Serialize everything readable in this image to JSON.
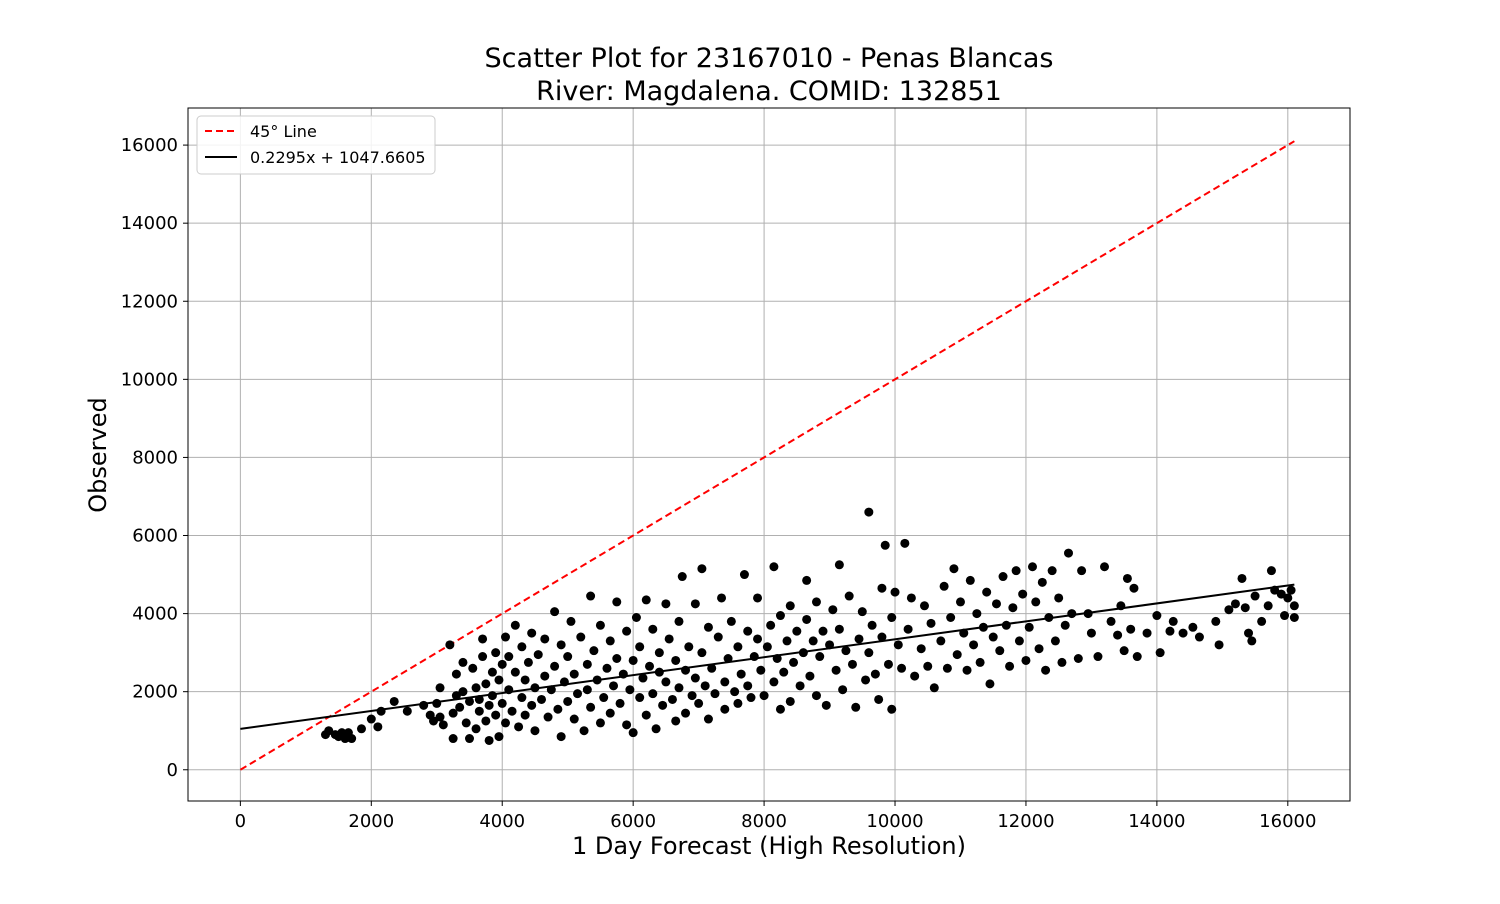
{
  "chart_data": {
    "type": "scatter",
    "title_lines": [
      "Scatter Plot for 23167010 - Penas Blancas",
      "River: Magdalena. COMID: 132851"
    ],
    "xlabel": "1 Day Forecast (High Resolution)",
    "ylabel": "Observed",
    "xlim": [
      -800,
      16950
    ],
    "ylim": [
      -800,
      16950
    ],
    "x_ticks": [
      0,
      2000,
      4000,
      6000,
      8000,
      10000,
      12000,
      14000,
      16000
    ],
    "y_ticks": [
      0,
      2000,
      4000,
      6000,
      8000,
      10000,
      12000,
      14000,
      16000
    ],
    "grid": true,
    "legend_position": "upper-left",
    "legend": [
      {
        "label": "45° Line",
        "style": "dashed",
        "color": "#ff0000"
      },
      {
        "label": "0.2295x + 1047.6605",
        "style": "solid",
        "color": "#000000"
      }
    ],
    "reference_line": {
      "name": "45° Line",
      "x": [
        0,
        16100
      ],
      "y": [
        0,
        16100
      ],
      "color": "#ff0000",
      "dash": true
    },
    "fit_line": {
      "name": "0.2295x + 1047.6605",
      "slope": 0.2295,
      "intercept": 1047.6605,
      "x_range": [
        0,
        16100
      ],
      "color": "#000000"
    },
    "marker_color": "#000000",
    "points": [
      [
        1300,
        900
      ],
      [
        1350,
        1000
      ],
      [
        1450,
        900
      ],
      [
        1500,
        850
      ],
      [
        1550,
        950
      ],
      [
        1600,
        800
      ],
      [
        1650,
        950
      ],
      [
        1700,
        800
      ],
      [
        1850,
        1050
      ],
      [
        2000,
        1300
      ],
      [
        2100,
        1100
      ],
      [
        2150,
        1500
      ],
      [
        2350,
        1750
      ],
      [
        2550,
        1500
      ],
      [
        2800,
        1650
      ],
      [
        2900,
        1400
      ],
      [
        2950,
        1250
      ],
      [
        3000,
        1700
      ],
      [
        3050,
        1350
      ],
      [
        3050,
        2100
      ],
      [
        3100,
        1150
      ],
      [
        3200,
        3200
      ],
      [
        3250,
        800
      ],
      [
        3250,
        1450
      ],
      [
        3300,
        1900
      ],
      [
        3300,
        2450
      ],
      [
        3350,
        1600
      ],
      [
        3400,
        2000
      ],
      [
        3400,
        2750
      ],
      [
        3450,
        1200
      ],
      [
        3500,
        1750
      ],
      [
        3500,
        800
      ],
      [
        3550,
        2600
      ],
      [
        3600,
        1050
      ],
      [
        3600,
        2100
      ],
      [
        3650,
        1500
      ],
      [
        3650,
        1800
      ],
      [
        3700,
        2900
      ],
      [
        3700,
        3350
      ],
      [
        3750,
        1250
      ],
      [
        3750,
        2200
      ],
      [
        3800,
        1650
      ],
      [
        3800,
        750
      ],
      [
        3850,
        2500
      ],
      [
        3850,
        1900
      ],
      [
        3900,
        1400
      ],
      [
        3900,
        3000
      ],
      [
        3950,
        2300
      ],
      [
        3950,
        850
      ],
      [
        4000,
        1700
      ],
      [
        4000,
        2700
      ],
      [
        4050,
        3400
      ],
      [
        4050,
        1200
      ],
      [
        4100,
        2050
      ],
      [
        4100,
        2900
      ],
      [
        4150,
        1500
      ],
      [
        4200,
        2500
      ],
      [
        4200,
        3700
      ],
      [
        4250,
        1100
      ],
      [
        4300,
        1850
      ],
      [
        4300,
        3150
      ],
      [
        4350,
        2300
      ],
      [
        4350,
        1400
      ],
      [
        4400,
        2750
      ],
      [
        4450,
        1650
      ],
      [
        4450,
        3500
      ],
      [
        4500,
        2100
      ],
      [
        4500,
        1000
      ],
      [
        4550,
        2950
      ],
      [
        4600,
        1800
      ],
      [
        4650,
        2400
      ],
      [
        4650,
        3350
      ],
      [
        4700,
        1350
      ],
      [
        4750,
        2050
      ],
      [
        4800,
        4050
      ],
      [
        4800,
        2650
      ],
      [
        4850,
        1550
      ],
      [
        4900,
        3200
      ],
      [
        4900,
        850
      ],
      [
        4950,
        2250
      ],
      [
        5000,
        1750
      ],
      [
        5000,
        2900
      ],
      [
        5050,
        3800
      ],
      [
        5100,
        1300
      ],
      [
        5100,
        2450
      ],
      [
        5150,
        1950
      ],
      [
        5200,
        3400
      ],
      [
        5250,
        1000
      ],
      [
        5300,
        2700
      ],
      [
        5300,
        2050
      ],
      [
        5350,
        4450
      ],
      [
        5350,
        1600
      ],
      [
        5400,
        3050
      ],
      [
        5450,
        2300
      ],
      [
        5500,
        1200
      ],
      [
        5500,
        3700
      ],
      [
        5550,
        1850
      ],
      [
        5600,
        2600
      ],
      [
        5650,
        3300
      ],
      [
        5650,
        1450
      ],
      [
        5700,
        2150
      ],
      [
        5750,
        4300
      ],
      [
        5750,
        2850
      ],
      [
        5800,
        1700
      ],
      [
        5850,
        2450
      ],
      [
        5900,
        3550
      ],
      [
        5900,
        1150
      ],
      [
        5950,
        2050
      ],
      [
        6000,
        2800
      ],
      [
        6000,
        950
      ],
      [
        6050,
        3900
      ],
      [
        6100,
        1850
      ],
      [
        6100,
        3150
      ],
      [
        6150,
        2350
      ],
      [
        6200,
        1400
      ],
      [
        6200,
        4350
      ],
      [
        6250,
        2650
      ],
      [
        6300,
        1950
      ],
      [
        6300,
        3600
      ],
      [
        6350,
        1050
      ],
      [
        6400,
        2500
      ],
      [
        6400,
        3000
      ],
      [
        6450,
        1650
      ],
      [
        6500,
        4250
      ],
      [
        6500,
        2250
      ],
      [
        6550,
        3350
      ],
      [
        6600,
        1800
      ],
      [
        6650,
        2800
      ],
      [
        6650,
        1250
      ],
      [
        6700,
        3800
      ],
      [
        6700,
        2100
      ],
      [
        6750,
        4950
      ],
      [
        6800,
        2550
      ],
      [
        6800,
        1450
      ],
      [
        6850,
        3150
      ],
      [
        6900,
        1900
      ],
      [
        6950,
        2350
      ],
      [
        6950,
        4250
      ],
      [
        7000,
        1700
      ],
      [
        7050,
        3000
      ],
      [
        7050,
        5150
      ],
      [
        7100,
        2150
      ],
      [
        7150,
        3650
      ],
      [
        7150,
        1300
      ],
      [
        7200,
        2600
      ],
      [
        7250,
        1950
      ],
      [
        7300,
        3400
      ],
      [
        7350,
        4400
      ],
      [
        7400,
        2250
      ],
      [
        7400,
        1550
      ],
      [
        7450,
        2850
      ],
      [
        7500,
        3800
      ],
      [
        7550,
        2000
      ],
      [
        7600,
        3150
      ],
      [
        7600,
        1700
      ],
      [
        7650,
        2450
      ],
      [
        7700,
        5000
      ],
      [
        7750,
        3550
      ],
      [
        7750,
        2150
      ],
      [
        7800,
        1850
      ],
      [
        7850,
        2900
      ],
      [
        7900,
        3350
      ],
      [
        7900,
        4400
      ],
      [
        7950,
        2550
      ],
      [
        8000,
        1900
      ],
      [
        8050,
        3150
      ],
      [
        8100,
        3700
      ],
      [
        8150,
        2250
      ],
      [
        8150,
        5200
      ],
      [
        8200,
        2850
      ],
      [
        8250,
        1550
      ],
      [
        8250,
        3950
      ],
      [
        8300,
        2500
      ],
      [
        8350,
        3300
      ],
      [
        8400,
        1750
      ],
      [
        8400,
        4200
      ],
      [
        8450,
        2750
      ],
      [
        8500,
        3550
      ],
      [
        8550,
        2150
      ],
      [
        8600,
        3000
      ],
      [
        8650,
        4850
      ],
      [
        8650,
        3850
      ],
      [
        8700,
        2400
      ],
      [
        8750,
        3300
      ],
      [
        8800,
        1900
      ],
      [
        8800,
        4300
      ],
      [
        8850,
        2900
      ],
      [
        8900,
        3550
      ],
      [
        8950,
        1650
      ],
      [
        9000,
        3200
      ],
      [
        9050,
        4100
      ],
      [
        9100,
        2550
      ],
      [
        9150,
        5250
      ],
      [
        9150,
        3600
      ],
      [
        9200,
        2050
      ],
      [
        9250,
        3050
      ],
      [
        9300,
        4450
      ],
      [
        9350,
        2700
      ],
      [
        9400,
        1600
      ],
      [
        9450,
        3350
      ],
      [
        9500,
        4050
      ],
      [
        9550,
        2300
      ],
      [
        9600,
        3000
      ],
      [
        9600,
        6600
      ],
      [
        9650,
        3700
      ],
      [
        9700,
        2450
      ],
      [
        9750,
        1800
      ],
      [
        9800,
        3400
      ],
      [
        9800,
        4650
      ],
      [
        9850,
        5750
      ],
      [
        9900,
        2700
      ],
      [
        9950,
        3900
      ],
      [
        9950,
        1550
      ],
      [
        10000,
        4550
      ],
      [
        10050,
        3200
      ],
      [
        10100,
        2600
      ],
      [
        10150,
        5800
      ],
      [
        10200,
        3600
      ],
      [
        10250,
        4400
      ],
      [
        10300,
        2400
      ],
      [
        10400,
        3100
      ],
      [
        10450,
        4200
      ],
      [
        10500,
        2650
      ],
      [
        10550,
        3750
      ],
      [
        10600,
        2100
      ],
      [
        10700,
        3300
      ],
      [
        10750,
        4700
      ],
      [
        10800,
        2600
      ],
      [
        10850,
        3900
      ],
      [
        10900,
        5150
      ],
      [
        10950,
        2950
      ],
      [
        11000,
        4300
      ],
      [
        11050,
        3500
      ],
      [
        11100,
        2550
      ],
      [
        11150,
        4850
      ],
      [
        11200,
        3200
      ],
      [
        11250,
        4000
      ],
      [
        11300,
        2750
      ],
      [
        11350,
        3650
      ],
      [
        11400,
        4550
      ],
      [
        11450,
        2200
      ],
      [
        11500,
        3400
      ],
      [
        11550,
        4250
      ],
      [
        11600,
        3050
      ],
      [
        11650,
        4950
      ],
      [
        11700,
        3700
      ],
      [
        11750,
        2650
      ],
      [
        11800,
        4150
      ],
      [
        11850,
        5100
      ],
      [
        11900,
        3300
      ],
      [
        11950,
        4500
      ],
      [
        12000,
        2800
      ],
      [
        12050,
        3650
      ],
      [
        12100,
        5200
      ],
      [
        12150,
        4300
      ],
      [
        12200,
        3100
      ],
      [
        12250,
        4800
      ],
      [
        12300,
        2550
      ],
      [
        12350,
        3900
      ],
      [
        12400,
        5100
      ],
      [
        12450,
        3300
      ],
      [
        12500,
        4400
      ],
      [
        12550,
        2750
      ],
      [
        12600,
        3700
      ],
      [
        12650,
        5550
      ],
      [
        12700,
        4000
      ],
      [
        12800,
        2850
      ],
      [
        12850,
        5100
      ],
      [
        12950,
        4000
      ],
      [
        13000,
        3500
      ],
      [
        13100,
        2900
      ],
      [
        13200,
        5200
      ],
      [
        13300,
        3800
      ],
      [
        13400,
        3450
      ],
      [
        13450,
        4200
      ],
      [
        13500,
        3050
      ],
      [
        13550,
        4900
      ],
      [
        13600,
        3600
      ],
      [
        13650,
        4650
      ],
      [
        13700,
        2900
      ],
      [
        13850,
        3500
      ],
      [
        14000,
        3950
      ],
      [
        14050,
        3000
      ],
      [
        14200,
        3550
      ],
      [
        14250,
        3800
      ],
      [
        14400,
        3500
      ],
      [
        14550,
        3650
      ],
      [
        14650,
        3400
      ],
      [
        14900,
        3800
      ],
      [
        14950,
        3200
      ],
      [
        15100,
        4100
      ],
      [
        15200,
        4250
      ],
      [
        15300,
        4900
      ],
      [
        15350,
        4150
      ],
      [
        15400,
        3500
      ],
      [
        15450,
        3300
      ],
      [
        15500,
        4450
      ],
      [
        15600,
        3800
      ],
      [
        15700,
        4200
      ],
      [
        15750,
        5100
      ],
      [
        15800,
        4600
      ],
      [
        15900,
        4500
      ],
      [
        15950,
        3950
      ],
      [
        16000,
        4400
      ],
      [
        16050,
        4600
      ],
      [
        16100,
        4200
      ],
      [
        16100,
        3900
      ]
    ]
  }
}
